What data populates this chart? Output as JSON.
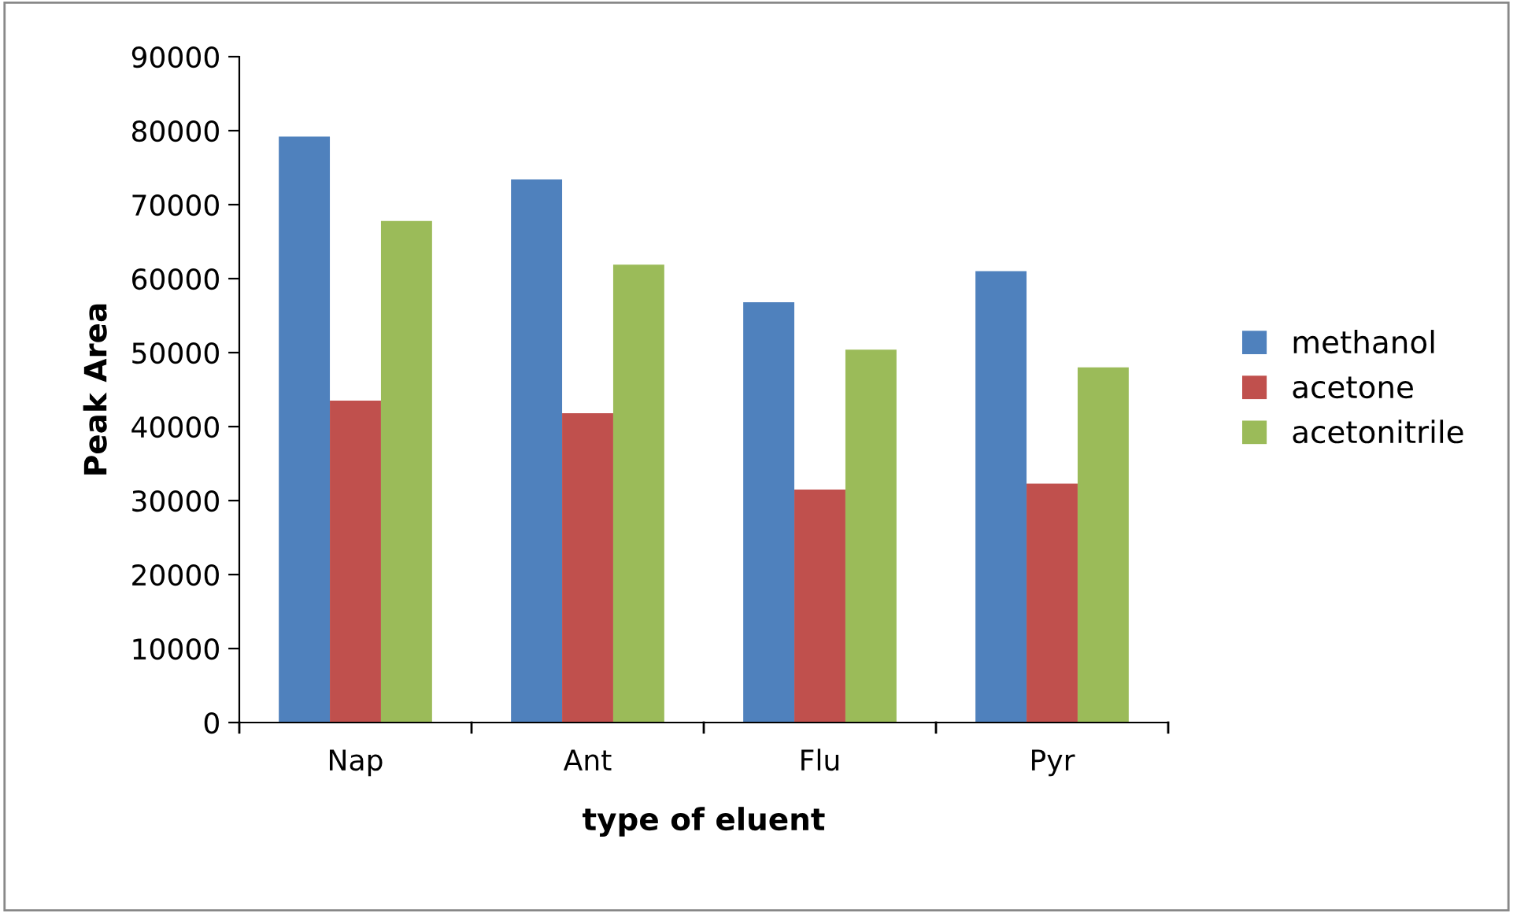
{
  "chart_data": {
    "type": "bar",
    "xlabel": "type of eluent",
    "ylabel": "Peak Area",
    "categories": [
      "Nap",
      "Ant",
      "Flu",
      "Pyr"
    ],
    "series": [
      {
        "name": "methanol",
        "color": "#4f81bd",
        "values": [
          79200,
          73400,
          56800,
          61000
        ]
      },
      {
        "name": "acetone",
        "color": "#c0504d",
        "values": [
          43500,
          41800,
          31500,
          32300
        ]
      },
      {
        "name": "acetonitrile",
        "color": "#9bbb59",
        "values": [
          67800,
          61900,
          50400,
          48000
        ]
      }
    ],
    "ylim": [
      0,
      90000
    ],
    "yticks": [
      0,
      10000,
      20000,
      30000,
      40000,
      50000,
      60000,
      70000,
      80000,
      90000
    ],
    "grid": false,
    "legend": "right"
  }
}
